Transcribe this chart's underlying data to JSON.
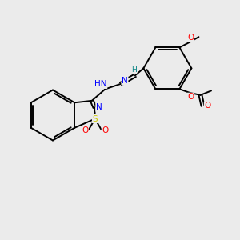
{
  "bg_color": "#ebebeb",
  "bond_color": "#000000",
  "atom_colors": {
    "N": "#0000ff",
    "O": "#ff0000",
    "S": "#cccc00",
    "H": "#008080",
    "C": "#000000"
  },
  "figsize": [
    3.0,
    3.0
  ],
  "dpi": 100,
  "lw": 1.4,
  "fs": 7.5,
  "fs_small": 6.5
}
